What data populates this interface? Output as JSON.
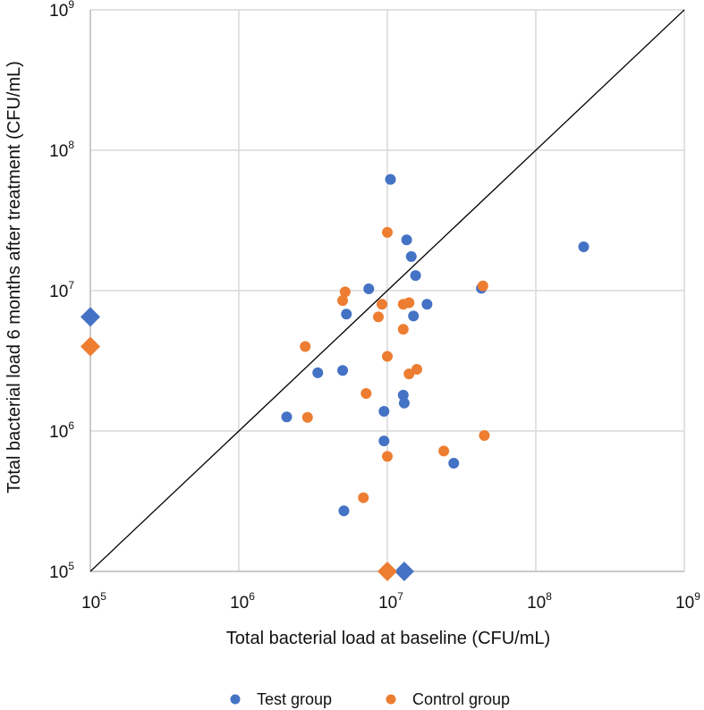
{
  "chart_data": {
    "type": "scatter",
    "x_scale": "log",
    "y_scale": "log",
    "xlim": [
      100000,
      1000000000
    ],
    "ylim": [
      100000,
      1000000000
    ],
    "grid": true,
    "xlabel": "Total bacterial load at baseline (CFU/mL)",
    "ylabel": "Total bacterial load 6 months after treatment (CFU/mL)",
    "x_ticks": [
      {
        "value": 100000,
        "base": "10",
        "exp": "5"
      },
      {
        "value": 1000000,
        "base": "10",
        "exp": "6"
      },
      {
        "value": 10000000,
        "base": "10",
        "exp": "7"
      },
      {
        "value": 100000000,
        "base": "10",
        "exp": "8"
      },
      {
        "value": 1000000000,
        "base": "10",
        "exp": "9"
      }
    ],
    "y_ticks": [
      {
        "value": 100000,
        "base": "10",
        "exp": "5"
      },
      {
        "value": 1000000,
        "base": "10",
        "exp": "6"
      },
      {
        "value": 10000000,
        "base": "10",
        "exp": "7"
      },
      {
        "value": 100000000,
        "base": "10",
        "exp": "8"
      },
      {
        "value": 1000000000,
        "base": "10",
        "exp": "9"
      }
    ],
    "reference_line": {
      "type": "identity",
      "from": [
        100000,
        100000
      ],
      "to": [
        1000000000,
        1000000000
      ],
      "color": "#000000"
    },
    "legend_position": "bottom",
    "series": [
      {
        "name": "Test group",
        "color": "#4472C4",
        "points": [
          {
            "x": 10500000,
            "y": 62000000
          },
          {
            "x": 13500000,
            "y": 23000000
          },
          {
            "x": 14500000,
            "y": 17500000
          },
          {
            "x": 15500000,
            "y": 12800000
          },
          {
            "x": 7500000,
            "y": 10300000
          },
          {
            "x": 43000000,
            "y": 10400000
          },
          {
            "x": 210000000,
            "y": 20500000
          },
          {
            "x": 18500000,
            "y": 8000000
          },
          {
            "x": 5300000,
            "y": 6800000
          },
          {
            "x": 15000000,
            "y": 6600000
          },
          {
            "x": 3400000,
            "y": 2600000
          },
          {
            "x": 5000000,
            "y": 2700000
          },
          {
            "x": 12800000,
            "y": 1800000
          },
          {
            "x": 13000000,
            "y": 1580000
          },
          {
            "x": 2100000,
            "y": 1260000
          },
          {
            "x": 9500000,
            "y": 1380000
          },
          {
            "x": 9500000,
            "y": 850000
          },
          {
            "x": 28000000,
            "y": 590000
          },
          {
            "x": 5100000,
            "y": 270000
          }
        ],
        "marker": "circle",
        "special_points": [
          {
            "x": 100000,
            "y": 6500000,
            "marker": "diamond"
          },
          {
            "x": 13000000,
            "y": 100000,
            "marker": "diamond"
          }
        ]
      },
      {
        "name": "Control group",
        "color": "#ED7D31",
        "points": [
          {
            "x": 10000000,
            "y": 26000000
          },
          {
            "x": 44000000,
            "y": 10800000
          },
          {
            "x": 5200000,
            "y": 9800000
          },
          {
            "x": 5000000,
            "y": 8500000
          },
          {
            "x": 9200000,
            "y": 8000000
          },
          {
            "x": 14000000,
            "y": 8200000
          },
          {
            "x": 12800000,
            "y": 8000000
          },
          {
            "x": 8700000,
            "y": 6500000
          },
          {
            "x": 12800000,
            "y": 5300000
          },
          {
            "x": 2800000,
            "y": 4000000
          },
          {
            "x": 10000000,
            "y": 3400000
          },
          {
            "x": 15800000,
            "y": 2750000
          },
          {
            "x": 14000000,
            "y": 2550000
          },
          {
            "x": 7200000,
            "y": 1850000
          },
          {
            "x": 2900000,
            "y": 1250000
          },
          {
            "x": 45000000,
            "y": 930000
          },
          {
            "x": 24000000,
            "y": 720000
          },
          {
            "x": 10000000,
            "y": 660000
          },
          {
            "x": 6900000,
            "y": 335000
          }
        ],
        "marker": "circle",
        "special_points": [
          {
            "x": 100000,
            "y": 4000000,
            "marker": "diamond"
          },
          {
            "x": 10000000,
            "y": 100000,
            "marker": "diamond"
          }
        ]
      }
    ]
  }
}
